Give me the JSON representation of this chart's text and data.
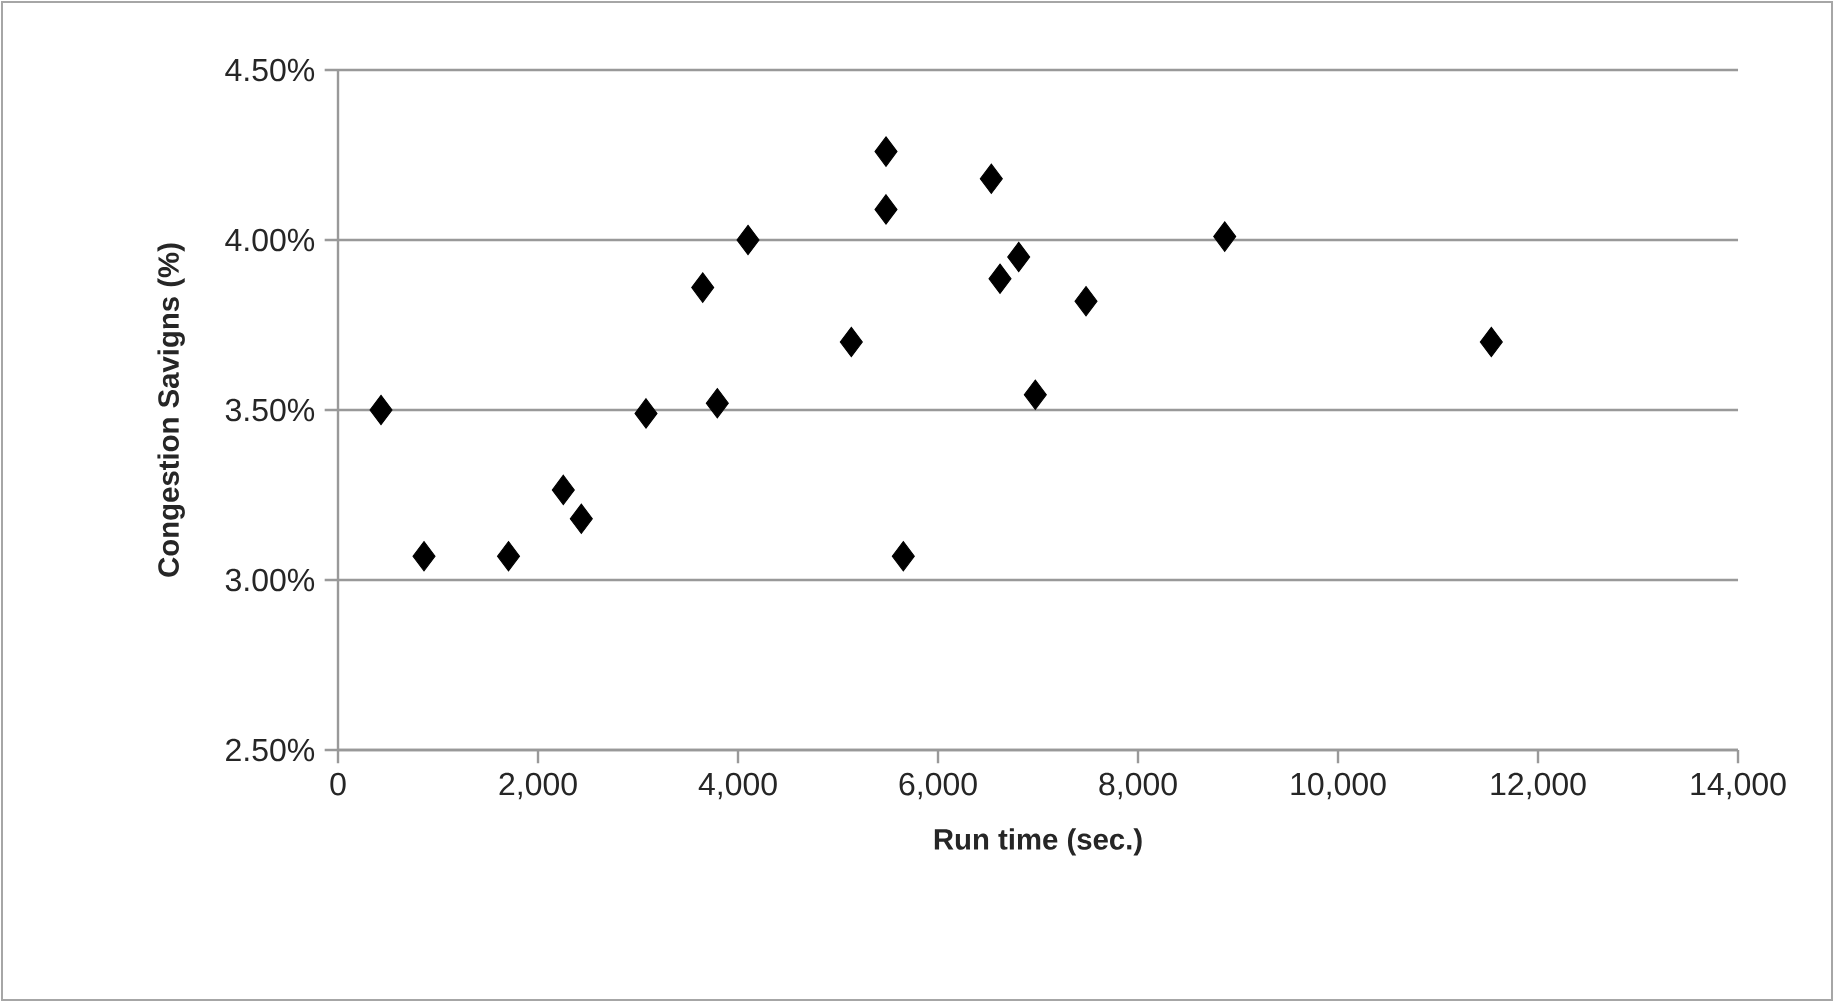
{
  "chart_data": {
    "type": "scatter",
    "xlabel": "Run time (sec.)",
    "ylabel": "Congestion Savigns (%)",
    "x": [
      430,
      860,
      1705,
      2253,
      2433,
      3080,
      3647,
      3793,
      4100,
      5133,
      5480,
      5480,
      5653,
      6533,
      6620,
      6807,
      6973,
      7480,
      8867,
      11533
    ],
    "series": [
      {
        "color": "#000000",
        "values": [
          3.5,
          3.07,
          3.07,
          3.265,
          3.18,
          3.49,
          3.86,
          3.52,
          4.0,
          3.7,
          4.09,
          4.26,
          3.07,
          4.18,
          3.886,
          3.95,
          3.545,
          3.82,
          4.01,
          3.7
        ]
      }
    ],
    "xlim": [
      0,
      14000
    ],
    "ylim": [
      2.5,
      4.5
    ],
    "xticks": [
      0,
      {
        "value": 2000,
        "label": "2,000"
      },
      {
        "value": 4000,
        "label": "4,000"
      },
      {
        "value": 6000,
        "label": "6,000"
      },
      {
        "value": 8000,
        "label": "8,000"
      },
      {
        "value": 10000,
        "label": "10,000"
      },
      {
        "value": 12000,
        "label": "12,000"
      },
      {
        "value": 14000,
        "label": "14,000"
      }
    ],
    "yticks": [
      {
        "value": 2.5,
        "label": "2.50%"
      },
      {
        "value": 3.0,
        "label": "3.00%"
      },
      {
        "value": 3.5,
        "label": "3.50%"
      },
      {
        "value": 4.0,
        "label": "4.00%"
      },
      {
        "value": 4.5,
        "label": "4.50%"
      }
    ],
    "grid": "y",
    "marker": "diamond"
  }
}
